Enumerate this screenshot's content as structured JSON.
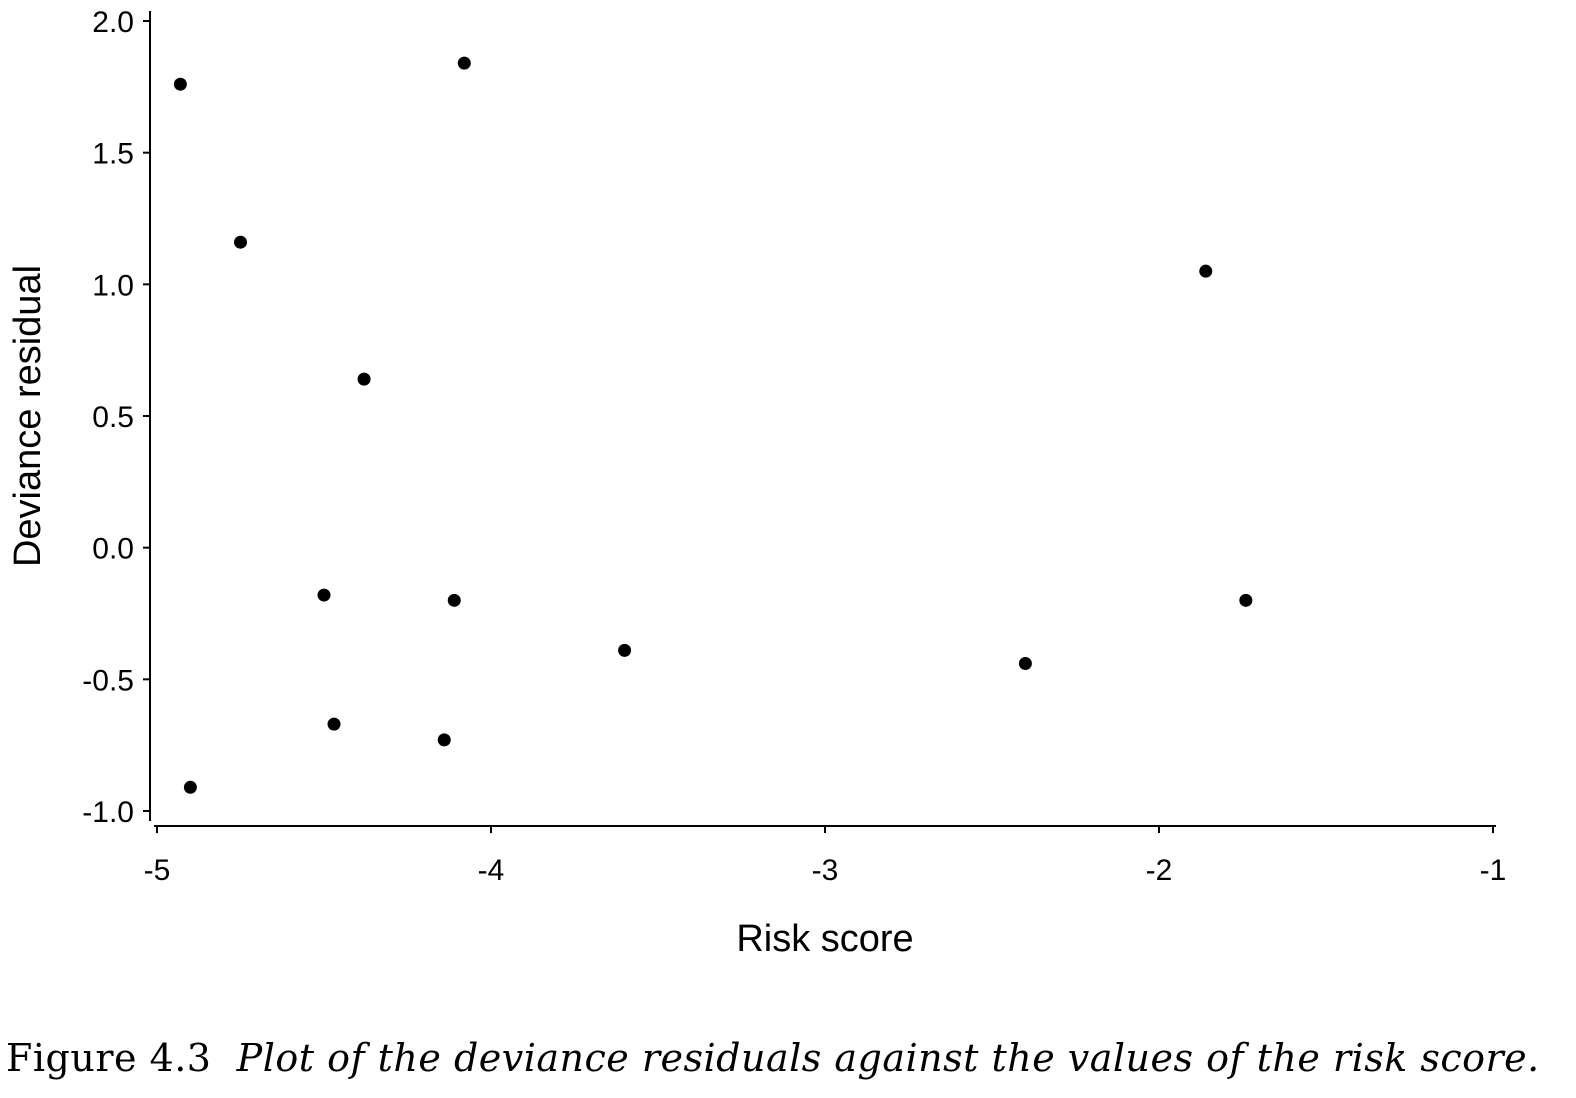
{
  "chart_data": {
    "type": "scatter",
    "title": "",
    "xlabel": "Risk score",
    "ylabel": "Deviance residual",
    "xlim": [
      -5,
      -1
    ],
    "ylim": [
      -1.0,
      2.0
    ],
    "xticks": [
      -5,
      -4,
      -3,
      -2,
      -1
    ],
    "xtick_labels": [
      "-5",
      "-4",
      "-3",
      "-2",
      "-1"
    ],
    "yticks": [
      -1.0,
      -0.5,
      0.0,
      0.5,
      1.0,
      1.5,
      2.0
    ],
    "ytick_labels": [
      "-1.0",
      "-0.5",
      "0.0",
      "0.5",
      "1.0",
      "1.5",
      "2.0"
    ],
    "grid": false,
    "marker_color": "#000000",
    "points": [
      {
        "x": -4.93,
        "y": 1.76
      },
      {
        "x": -4.9,
        "y": -0.91
      },
      {
        "x": -4.75,
        "y": 1.16
      },
      {
        "x": -4.5,
        "y": -0.18
      },
      {
        "x": -4.47,
        "y": -0.67
      },
      {
        "x": -4.38,
        "y": 0.64
      },
      {
        "x": -4.14,
        "y": -0.73
      },
      {
        "x": -4.11,
        "y": -0.2
      },
      {
        "x": -4.08,
        "y": 1.84
      },
      {
        "x": -3.6,
        "y": -0.39
      },
      {
        "x": -2.4,
        "y": -0.44
      },
      {
        "x": -1.86,
        "y": 1.05
      },
      {
        "x": -1.74,
        "y": -0.2
      }
    ]
  },
  "caption": {
    "label": "Figure 4.3",
    "text": "Plot of the deviance residuals against the values of the risk score."
  }
}
